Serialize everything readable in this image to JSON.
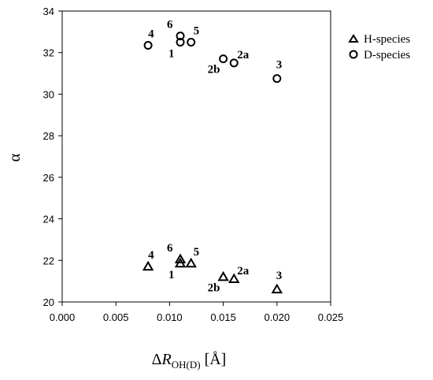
{
  "chart_data": {
    "type": "scatter",
    "title": "",
    "ylabel": "α",
    "xlabel": {
      "prefix": "Δ",
      "italic": "R",
      "subscript": "OH(D)",
      "unit": " [Å]"
    },
    "xlim": [
      0.0,
      0.025
    ],
    "ylim": [
      20,
      34
    ],
    "x_ticks": [
      0.0,
      0.005,
      0.01,
      0.015,
      0.02,
      0.025
    ],
    "x_tick_labels": [
      "0.000",
      "0.005",
      "0.010",
      "0.015",
      "0.020",
      "0.025"
    ],
    "y_ticks": [
      20,
      22,
      24,
      26,
      28,
      30,
      32,
      34
    ],
    "y_tick_labels": [
      "20",
      "22",
      "24",
      "26",
      "28",
      "30",
      "32",
      "34"
    ],
    "grid": false,
    "legend_position": "top-right",
    "series": [
      {
        "name": "H-species",
        "marker": "triangle",
        "points": [
          {
            "label": "1",
            "x": 0.011,
            "y": 21.85
          },
          {
            "label": "2a",
            "x": 0.016,
            "y": 21.1
          },
          {
            "label": "2b",
            "x": 0.015,
            "y": 21.2
          },
          {
            "label": "3",
            "x": 0.02,
            "y": 20.6
          },
          {
            "label": "4",
            "x": 0.008,
            "y": 21.7
          },
          {
            "label": "5",
            "x": 0.012,
            "y": 21.85
          },
          {
            "label": "6",
            "x": 0.011,
            "y": 22.05
          }
        ]
      },
      {
        "name": "D-species",
        "marker": "circle",
        "points": [
          {
            "label": "1",
            "x": 0.011,
            "y": 32.5
          },
          {
            "label": "2a",
            "x": 0.016,
            "y": 31.5
          },
          {
            "label": "2b",
            "x": 0.015,
            "y": 31.7
          },
          {
            "label": "3",
            "x": 0.02,
            "y": 30.75
          },
          {
            "label": "4",
            "x": 0.008,
            "y": 32.35
          },
          {
            "label": "5",
            "x": 0.012,
            "y": 32.5
          },
          {
            "label": "6",
            "x": 0.011,
            "y": 32.8
          }
        ]
      }
    ]
  }
}
